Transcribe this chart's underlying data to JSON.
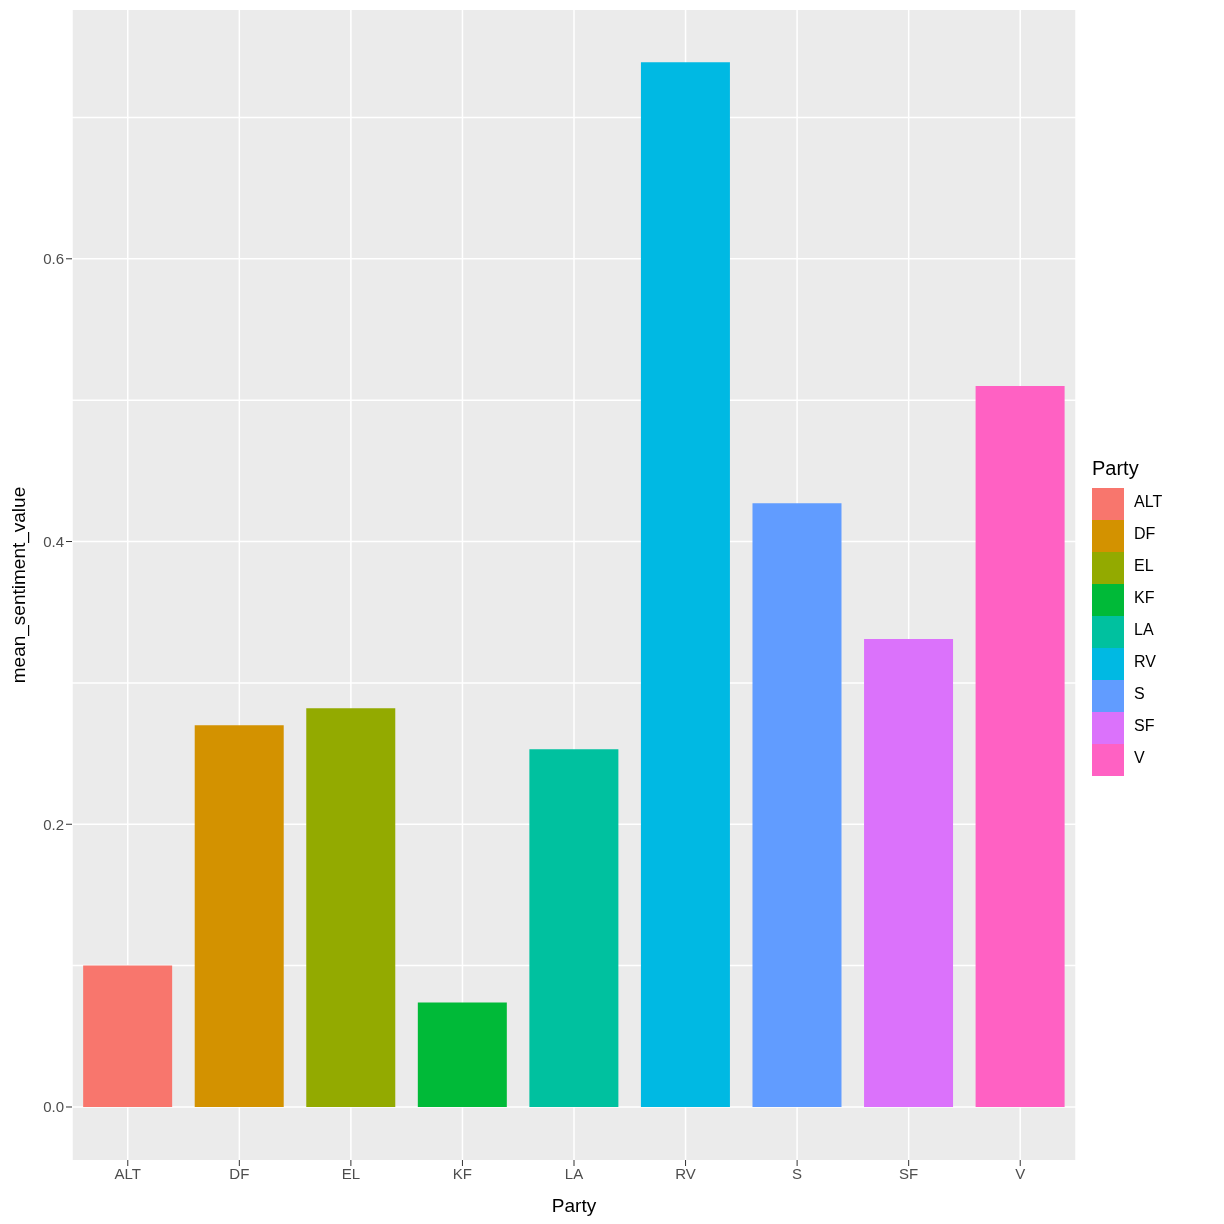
{
  "chart_data": {
    "type": "bar",
    "xlabel": "Party",
    "ylabel": "mean_sentiment_value",
    "legend_title": "Party",
    "stacked": true,
    "categories": [
      "ALT",
      "DF",
      "EL",
      "KF",
      "LA",
      "RV",
      "S",
      "SF",
      "V"
    ],
    "series": [
      {
        "name": "ALT",
        "color": "#f8766d",
        "values": [
          0.1,
          null,
          null,
          null,
          null,
          null,
          null,
          null,
          null
        ]
      },
      {
        "name": "DF",
        "color": "#d39200",
        "values": [
          null,
          0.27,
          null,
          null,
          null,
          null,
          null,
          null,
          null
        ]
      },
      {
        "name": "EL",
        "color": "#93aa00",
        "values": [
          null,
          null,
          0.282,
          null,
          null,
          null,
          null,
          null,
          null
        ]
      },
      {
        "name": "KF",
        "color": "#00ba38",
        "values": [
          null,
          null,
          null,
          0.074,
          null,
          null,
          null,
          null,
          null
        ]
      },
      {
        "name": "LA",
        "color": "#00c19f",
        "values": [
          null,
          null,
          null,
          null,
          0.253,
          null,
          null,
          null,
          null
        ]
      },
      {
        "name": "RV",
        "color": "#00b9e3",
        "values": [
          null,
          null,
          null,
          null,
          null,
          0.739,
          null,
          null,
          null
        ]
      },
      {
        "name": "S",
        "color": "#619cff",
        "values": [
          null,
          null,
          null,
          null,
          null,
          null,
          0.427,
          null,
          null
        ]
      },
      {
        "name": "SF",
        "color": "#db72fb",
        "values": [
          null,
          null,
          null,
          null,
          null,
          null,
          null,
          0.331,
          null
        ]
      },
      {
        "name": "V",
        "color": "#ff61c3",
        "values": [
          null,
          null,
          null,
          null,
          null,
          null,
          null,
          null,
          0.51
        ]
      }
    ],
    "ylim": [
      -0.0375,
      0.776
    ],
    "yticks": [
      {
        "value": 0,
        "label": "0.0"
      },
      {
        "value": 0.2,
        "label": "0.2"
      },
      {
        "value": 0.4,
        "label": "0.4"
      },
      {
        "value": 0.6,
        "label": "0.6"
      }
    ],
    "grid": true,
    "legend": "right"
  }
}
